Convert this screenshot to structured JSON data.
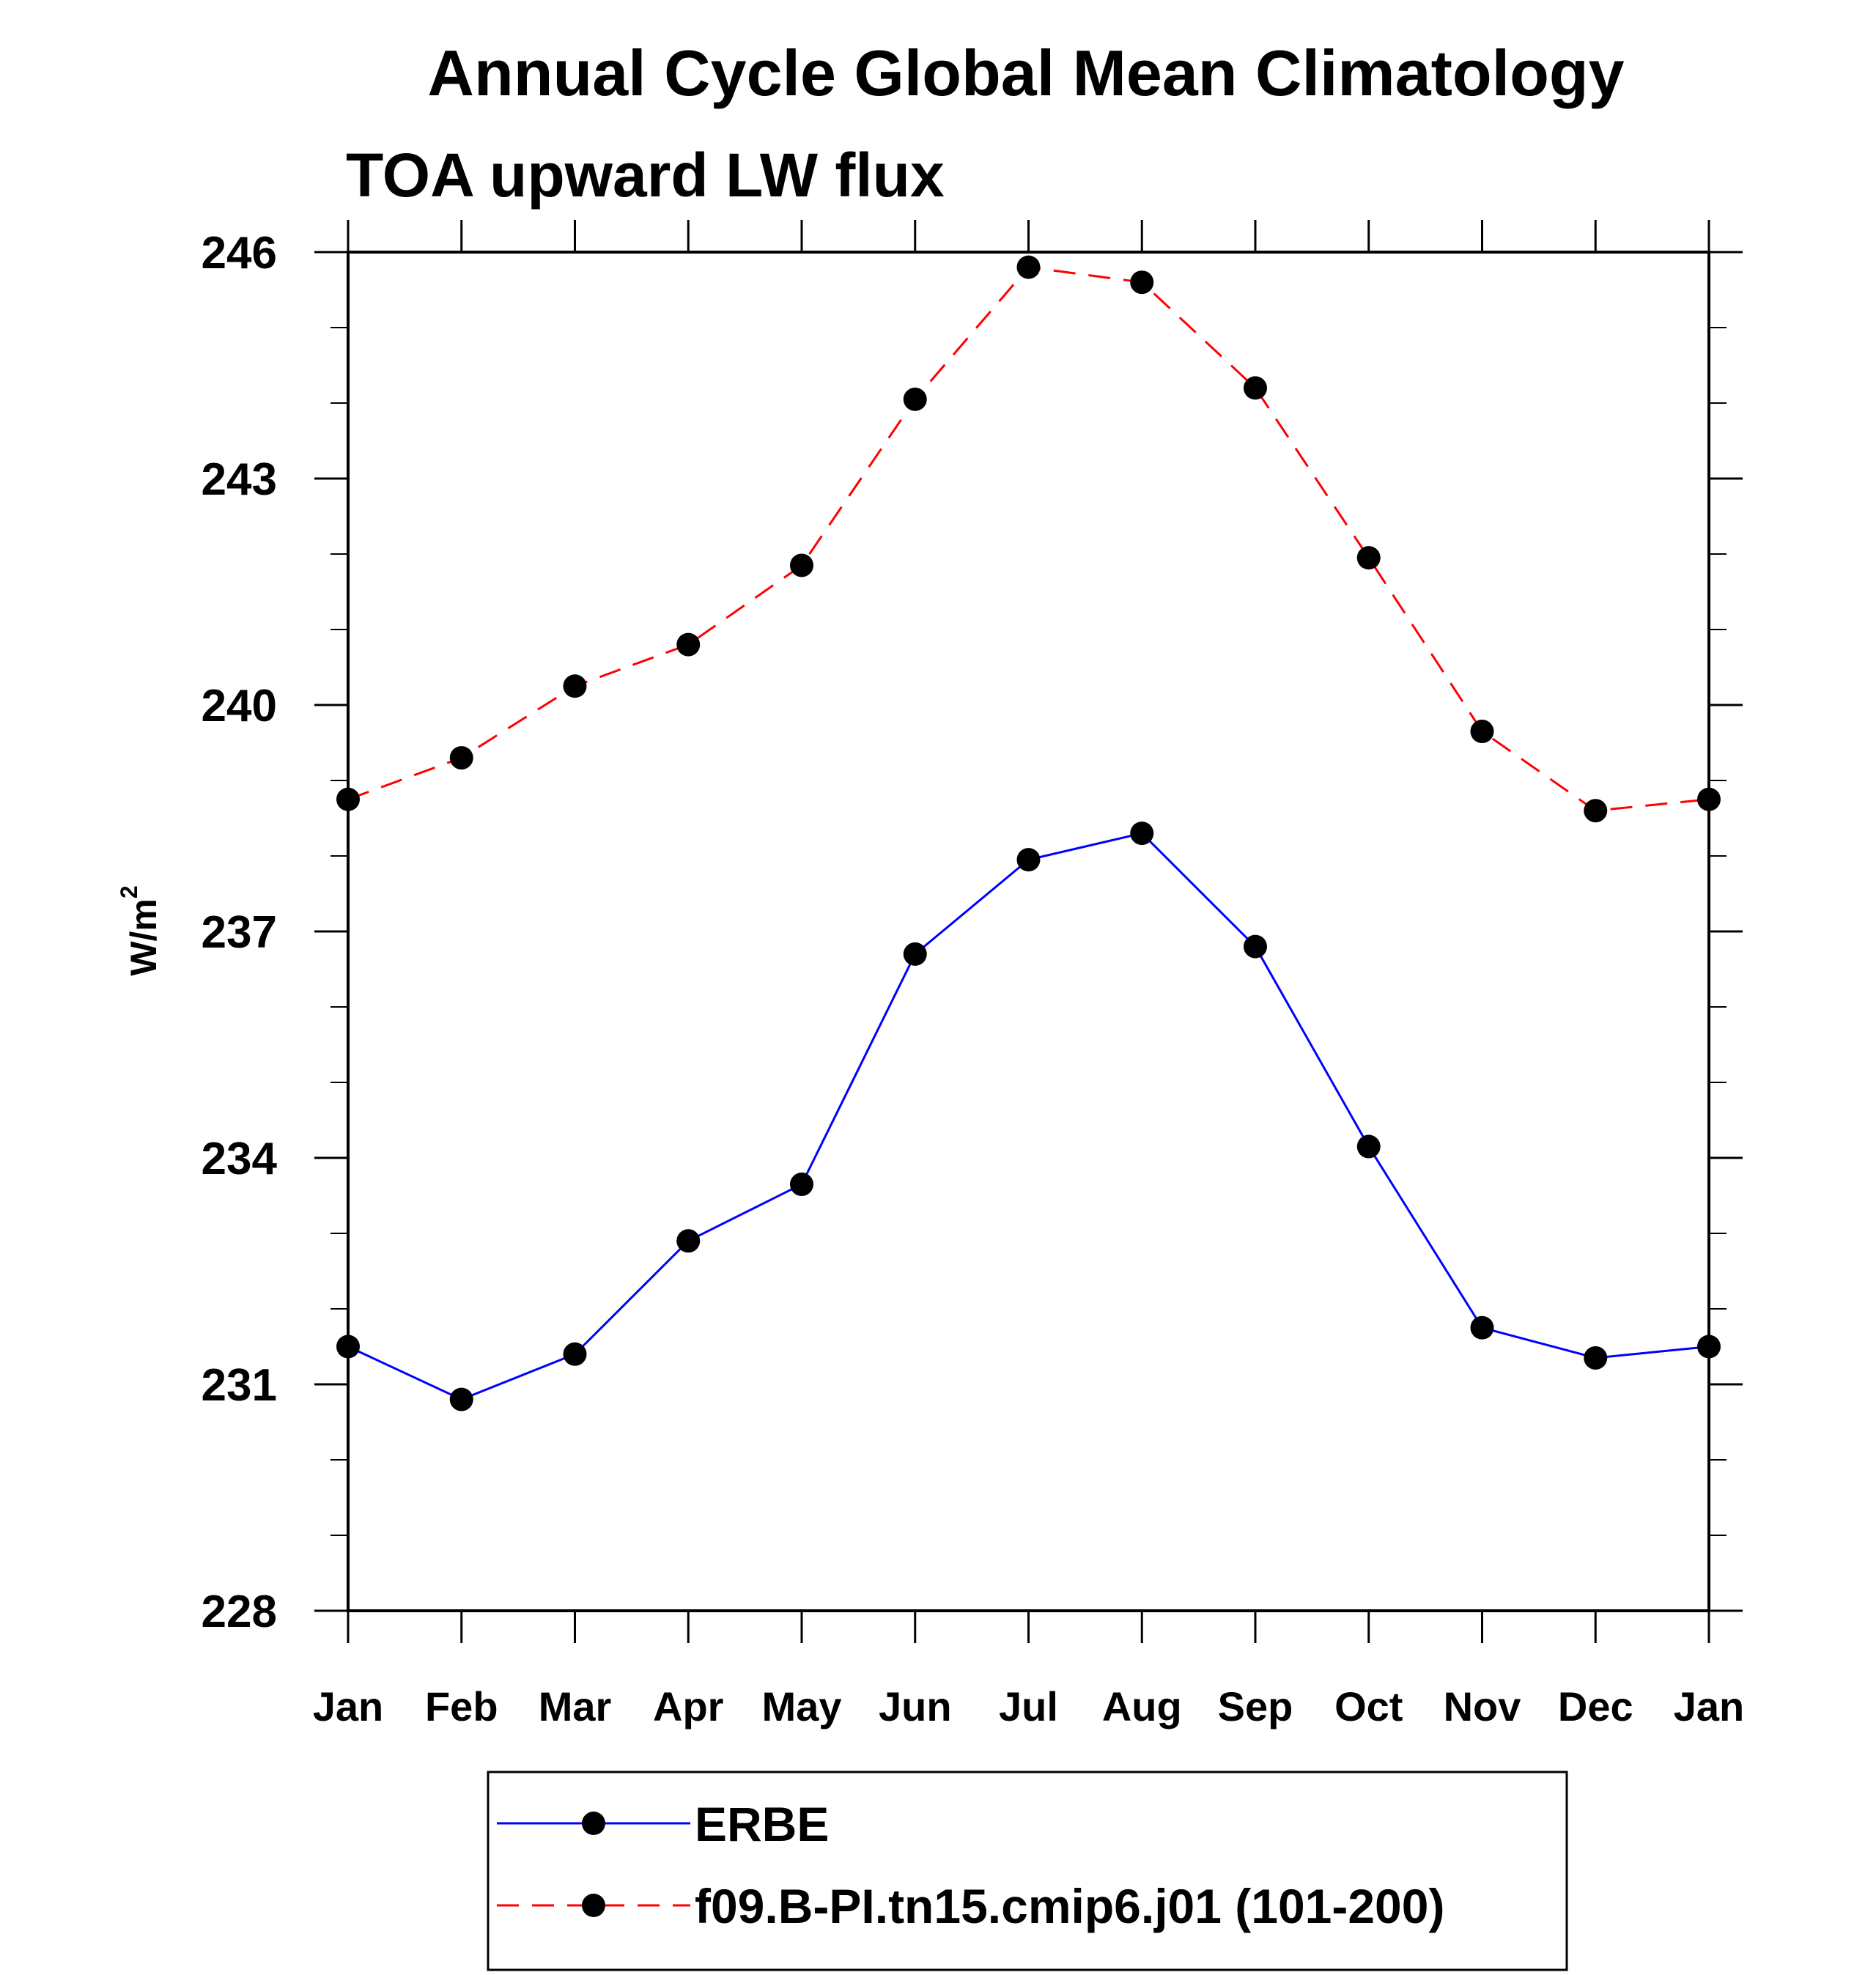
{
  "chart_data": {
    "type": "line",
    "title": "Annual Cycle Global Mean Climatology",
    "subtitle": "TOA upward LW flux",
    "ylabel": "W/m",
    "ylabel_superscript": "2",
    "xlabel": "",
    "categories": [
      "Jan",
      "Feb",
      "Mar",
      "Apr",
      "May",
      "Jun",
      "Jul",
      "Aug",
      "Sep",
      "Oct",
      "Nov",
      "Dec",
      "Jan"
    ],
    "ylim": [
      228,
      246
    ],
    "yticks": [
      "228",
      "231",
      "234",
      "237",
      "240",
      "243",
      "246"
    ],
    "grid": false,
    "legend_position": "bottom",
    "series": [
      {
        "name": "ERBE",
        "color": "#0000ff",
        "style": "solid",
        "marker": "filled-circle",
        "values": [
          231.5,
          230.8,
          231.4,
          232.9,
          233.65,
          236.7,
          237.95,
          238.3,
          236.8,
          234.15,
          231.75,
          231.35,
          231.5
        ]
      },
      {
        "name": "f09.B-PI.tn15.cmip6.j01 (101-200)",
        "color": "#ff0000",
        "style": "dashed",
        "marker": "filled-circle",
        "values": [
          238.75,
          239.3,
          240.25,
          240.8,
          241.85,
          244.05,
          245.8,
          245.6,
          244.2,
          241.95,
          239.65,
          238.6,
          238.75
        ]
      }
    ]
  }
}
